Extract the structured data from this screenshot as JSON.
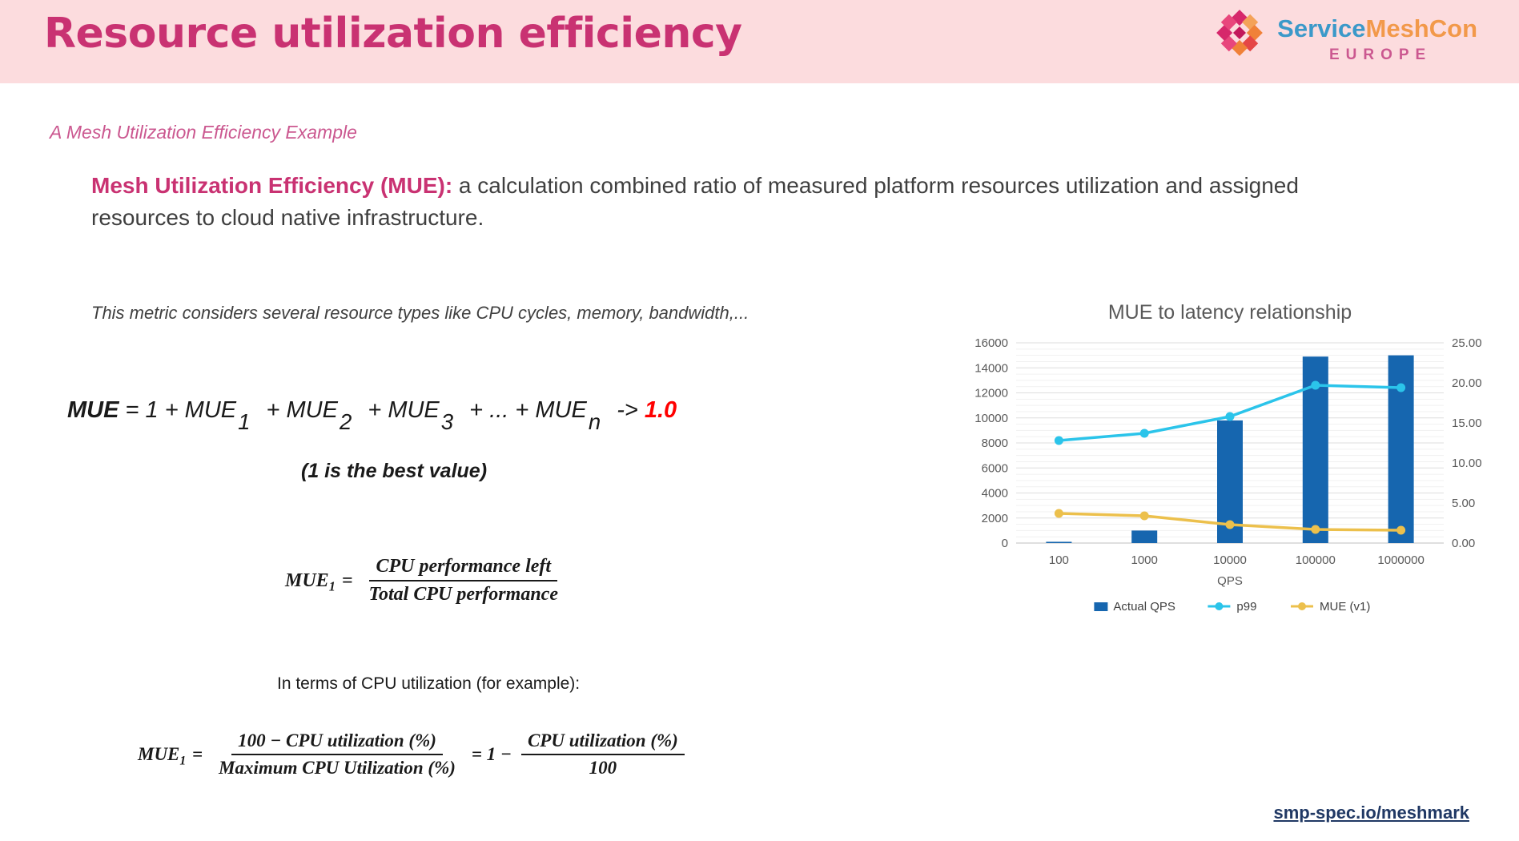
{
  "header": {
    "title": "Resource utilization efficiency",
    "logo": {
      "brand_service": "Service",
      "brand_meshcon": "MeshCon",
      "region": "EUROPE"
    }
  },
  "subtitle": "A Mesh Utilization Efficiency Example",
  "definition": {
    "lead": "Mesh Utilization Efficiency (MUE):",
    "rest": " a calculation combined ratio of measured platform resources utilization and assigned resources to cloud native infrastructure."
  },
  "note": "This metric considers several resource types like CPU cycles, memory, bandwidth,...",
  "formula_sum": {
    "lhs": "MUE",
    "t1": " = 1 + MUE",
    "sub1": "1",
    "t2": " + MUE",
    "sub2": "2",
    "t3": " + MUE",
    "sub3": "3",
    "t4": " + ... + MUE",
    "subn": "n",
    "arrow": " -> ",
    "target": "1.0",
    "caption": "(1 is the best value)"
  },
  "formula_mue1": {
    "lhs": "MUE",
    "lhs_sub": "1",
    "eq": "=",
    "numerator": "CPU performance left",
    "denominator": "Total CPU performance"
  },
  "cpu_note": "In terms of CPU utilization (for example):",
  "formula_cpu": {
    "lhs": "MUE",
    "lhs_sub": "1",
    "eq": "=",
    "numerator1": "100 − CPU utilization (%)",
    "denominator1": "Maximum CPU Utilization (%)",
    "eq2": "= 1 −",
    "numerator2": "CPU utilization (%)",
    "denominator2": "100"
  },
  "footer_link": "smp-spec.io/meshmark",
  "chart_data": {
    "type": "combo",
    "title": "MUE to latency relationship",
    "categories": [
      "100",
      "1000",
      "10000",
      "100000",
      "1000000"
    ],
    "xlabel": "QPS",
    "left_axis": {
      "min": 0,
      "max": 16000,
      "minor_step": 500,
      "major_step": 2000,
      "ticks": [
        0,
        2000,
        4000,
        6000,
        8000,
        10000,
        12000,
        14000,
        16000
      ]
    },
    "right_axis": {
      "min": 0,
      "max": 25,
      "tick_step": 5,
      "ticks": [
        "0.00",
        "5.00",
        "10.00",
        "15.00",
        "20.00",
        "25.00"
      ]
    },
    "series": [
      {
        "name": "Actual QPS",
        "type": "bar",
        "axis": "left",
        "color": "#1666af",
        "values": [
          100,
          1000,
          9800,
          14900,
          15000
        ]
      },
      {
        "name": "p99",
        "type": "line",
        "axis": "right",
        "color": "#2bc4ea",
        "values": [
          12.8,
          13.7,
          15.8,
          19.7,
          19.4
        ]
      },
      {
        "name": "MUE (v1)",
        "type": "line",
        "axis": "right",
        "color": "#ecc04c",
        "values": [
          3.7,
          3.4,
          2.3,
          1.7,
          1.6
        ]
      }
    ],
    "legend_position": "bottom",
    "grid": true
  }
}
